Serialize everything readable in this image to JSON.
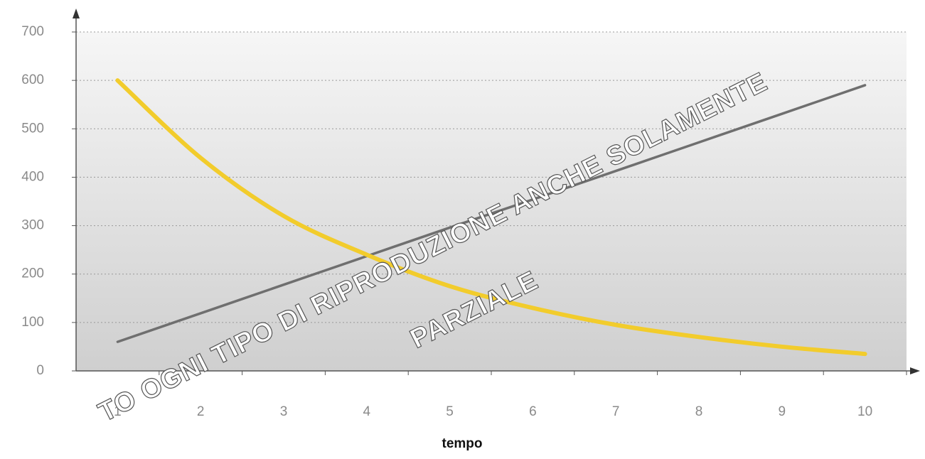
{
  "chart_data": {
    "type": "line",
    "x_label": "tempo",
    "categories": [
      1,
      2,
      3,
      4,
      5,
      6,
      7,
      8,
      9,
      10
    ],
    "series": [
      {
        "color": "#6f6f6f",
        "values": [
          60,
          119,
          178,
          237,
          296,
          354,
          413,
          472,
          531,
          590
        ]
      },
      {
        "color": "#f2cc2c",
        "values": [
          600,
          440,
          320,
          240,
          175,
          130,
          95,
          70,
          50,
          35
        ]
      }
    ],
    "ylim": [
      0,
      700
    ],
    "yticks": [
      0,
      100,
      200,
      300,
      400,
      500,
      600,
      700
    ],
    "grid": true,
    "annotations": [
      "TO OGNI TIPO DI RIPRODUZIONE ANCHE SOLAMENTE",
      "PARZIALE"
    ]
  }
}
